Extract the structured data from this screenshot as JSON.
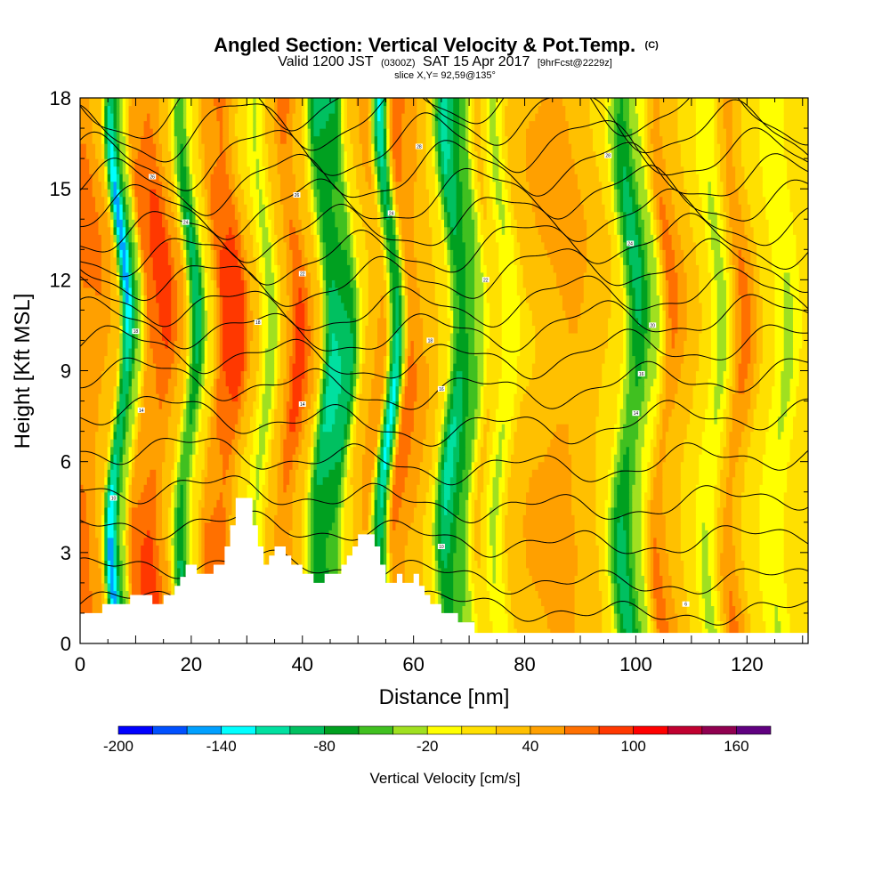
{
  "title": {
    "main": "Angled Section: Vertical Velocity & Pot.Temp.",
    "tag": "(C)",
    "sub_a": "Valid 1200 JST",
    "sub_b": "(0300Z)",
    "sub_c": "SAT 15 Apr 2017",
    "sub_d": "[9hrFcst@2229z]",
    "slice": "slice X,Y= 92,59@135°"
  },
  "chart_data": {
    "type": "heatmap",
    "xlabel": "Distance [nm]",
    "ylabel": "Height [Kft MSL]",
    "xlim": [
      0,
      131
    ],
    "ylim": [
      0,
      18
    ],
    "x_ticks": [
      0,
      20,
      40,
      60,
      80,
      100,
      120
    ],
    "y_ticks": [
      0,
      3,
      6,
      9,
      12,
      15,
      18
    ],
    "colorbar": {
      "title": "Vertical Velocity [cm/s]",
      "levels": [
        -200,
        -180,
        -160,
        -140,
        -120,
        -100,
        -80,
        -60,
        -40,
        -20,
        0,
        20,
        40,
        60,
        80,
        100,
        120,
        140,
        160,
        180
      ],
      "tick_labels": [
        "-200",
        "-140",
        "-80",
        "-20",
        "40",
        "100",
        "160"
      ],
      "colors": [
        "#0000ff",
        "#0050ff",
        "#00a0ff",
        "#00ffff",
        "#00e0a0",
        "#00c060",
        "#00a020",
        "#40c020",
        "#a0e020",
        "#ffff00",
        "#ffe000",
        "#ffc000",
        "#ffa000",
        "#ff7000",
        "#ff3800",
        "#ff0000",
        "#c00030",
        "#900050",
        "#600080"
      ]
    },
    "velocity_columns": [
      {
        "x": 2,
        "v": 70
      },
      {
        "x": 5,
        "v": 40
      },
      {
        "x": 7,
        "v": -155
      },
      {
        "x": 9,
        "v": -40
      },
      {
        "x": 11,
        "v": 75
      },
      {
        "x": 14,
        "v": 95
      },
      {
        "x": 17,
        "v": 45
      },
      {
        "x": 19.5,
        "v": -95
      },
      {
        "x": 22,
        "v": 10
      },
      {
        "x": 24.5,
        "v": 90
      },
      {
        "x": 27,
        "v": 100
      },
      {
        "x": 30,
        "v": 30
      },
      {
        "x": 33,
        "v": -35
      },
      {
        "x": 35.5,
        "v": 40
      },
      {
        "x": 38,
        "v": 95
      },
      {
        "x": 41,
        "v": 40
      },
      {
        "x": 44,
        "v": -110
      },
      {
        "x": 47,
        "v": -95
      },
      {
        "x": 50,
        "v": 25
      },
      {
        "x": 53,
        "v": 60
      },
      {
        "x": 55.5,
        "v": -130
      },
      {
        "x": 58,
        "v": 80
      },
      {
        "x": 61,
        "v": 50
      },
      {
        "x": 64,
        "v": 20
      },
      {
        "x": 67,
        "v": -110
      },
      {
        "x": 70,
        "v": -60
      },
      {
        "x": 73,
        "v": 25
      },
      {
        "x": 76,
        "v": -25
      },
      {
        "x": 79,
        "v": 30
      },
      {
        "x": 83,
        "v": 45
      },
      {
        "x": 87,
        "v": 60
      },
      {
        "x": 91,
        "v": 40
      },
      {
        "x": 95,
        "v": 20
      },
      {
        "x": 99,
        "v": -95
      },
      {
        "x": 102,
        "v": -30
      },
      {
        "x": 105,
        "v": 70
      },
      {
        "x": 108,
        "v": 40
      },
      {
        "x": 111,
        "v": 15
      },
      {
        "x": 114,
        "v": -30
      },
      {
        "x": 118,
        "v": 70
      },
      {
        "x": 122,
        "v": 15
      },
      {
        "x": 126,
        "v": -25
      },
      {
        "x": 130,
        "v": 20
      }
    ],
    "terrain": [
      [
        0,
        1.0
      ],
      [
        4,
        1.0
      ],
      [
        4,
        1.3
      ],
      [
        9,
        1.3
      ],
      [
        9,
        1.6
      ],
      [
        13,
        1.6
      ],
      [
        13,
        1.3
      ],
      [
        15,
        1.3
      ],
      [
        15,
        1.6
      ],
      [
        17,
        1.6
      ],
      [
        17,
        1.9
      ],
      [
        18,
        1.9
      ],
      [
        18,
        2.2
      ],
      [
        19,
        2.2
      ],
      [
        19,
        2.6
      ],
      [
        21,
        2.6
      ],
      [
        21,
        2.3
      ],
      [
        24,
        2.3
      ],
      [
        24,
        2.6
      ],
      [
        26,
        2.6
      ],
      [
        26,
        3.2
      ],
      [
        27,
        3.2
      ],
      [
        27,
        3.9
      ],
      [
        28,
        3.9
      ],
      [
        28,
        4.8
      ],
      [
        31,
        4.8
      ],
      [
        31,
        3.9
      ],
      [
        32,
        3.9
      ],
      [
        32,
        3.2
      ],
      [
        33,
        3.2
      ],
      [
        33,
        2.6
      ],
      [
        34,
        2.6
      ],
      [
        34,
        2.9
      ],
      [
        35,
        2.9
      ],
      [
        35,
        3.2
      ],
      [
        37,
        3.2
      ],
      [
        37,
        2.9
      ],
      [
        38,
        2.9
      ],
      [
        38,
        2.6
      ],
      [
        40,
        2.6
      ],
      [
        40,
        2.3
      ],
      [
        42,
        2.3
      ],
      [
        42,
        2.0
      ],
      [
        44,
        2.0
      ],
      [
        44,
        2.3
      ],
      [
        47,
        2.3
      ],
      [
        47,
        2.6
      ],
      [
        48,
        2.6
      ],
      [
        48,
        2.9
      ],
      [
        49,
        2.9
      ],
      [
        49,
        3.2
      ],
      [
        50,
        3.2
      ],
      [
        50,
        3.6
      ],
      [
        53,
        3.6
      ],
      [
        53,
        3.2
      ],
      [
        54,
        3.2
      ],
      [
        54,
        2.6
      ],
      [
        55,
        2.6
      ],
      [
        55,
        2.0
      ],
      [
        57,
        2.0
      ],
      [
        57,
        2.3
      ],
      [
        58,
        2.3
      ],
      [
        58,
        2.0
      ],
      [
        60,
        2.0
      ],
      [
        60,
        2.3
      ],
      [
        61,
        2.3
      ],
      [
        61,
        1.9
      ],
      [
        62,
        1.9
      ],
      [
        62,
        1.6
      ],
      [
        63,
        1.6
      ],
      [
        63,
        1.3
      ],
      [
        65,
        1.3
      ],
      [
        65,
        1.0
      ],
      [
        68,
        1.0
      ],
      [
        68,
        0.7
      ],
      [
        71,
        0.7
      ],
      [
        71,
        0.35
      ],
      [
        131,
        0.35
      ]
    ],
    "isentropes_kft": [
      1.3,
      2.3,
      3.6,
      4.8,
      6.1,
      7.4,
      8.6,
      9.6,
      10.5,
      11.3,
      12.2,
      13.0,
      13.8,
      14.6,
      15.4,
      16.2,
      17.1,
      17.8
    ],
    "isentrope_labels": [
      {
        "x": 6,
        "y": 4.8,
        "text": "10"
      },
      {
        "x": 11,
        "y": 7.7,
        "text": "14"
      },
      {
        "x": 10,
        "y": 10.3,
        "text": "18"
      },
      {
        "x": 13,
        "y": 15.4,
        "text": "26"
      },
      {
        "x": 19,
        "y": 13.9,
        "text": "24"
      },
      {
        "x": 32,
        "y": 10.6,
        "text": "18"
      },
      {
        "x": 40,
        "y": 7.9,
        "text": "14"
      },
      {
        "x": 40,
        "y": 12.2,
        "text": "22"
      },
      {
        "x": 39,
        "y": 14.8,
        "text": "26"
      },
      {
        "x": 56,
        "y": 14.2,
        "text": "24"
      },
      {
        "x": 61,
        "y": 16.4,
        "text": "28"
      },
      {
        "x": 63,
        "y": 10.0,
        "text": "18"
      },
      {
        "x": 65,
        "y": 8.4,
        "text": "16"
      },
      {
        "x": 73,
        "y": 12.0,
        "text": "22"
      },
      {
        "x": 65,
        "y": 3.2,
        "text": "10"
      },
      {
        "x": 95,
        "y": 16.1,
        "text": "28"
      },
      {
        "x": 99,
        "y": 13.2,
        "text": "24"
      },
      {
        "x": 103,
        "y": 10.5,
        "text": "20"
      },
      {
        "x": 101,
        "y": 8.9,
        "text": "16"
      },
      {
        "x": 100,
        "y": 7.6,
        "text": "14"
      },
      {
        "x": 109,
        "y": 1.3,
        "text": "6"
      }
    ]
  }
}
